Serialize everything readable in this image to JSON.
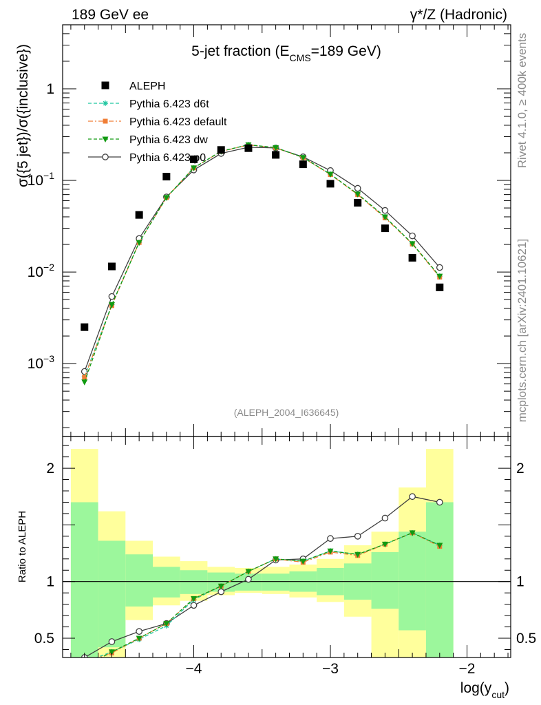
{
  "header": {
    "left": "189 GeV ee",
    "right": "γ*/Z (Hadronic)"
  },
  "side_labels": {
    "rivet": "Rivet 4.1.0, ≥ 400k events",
    "mcplots": "mcplots.cern.ch [arXiv:2401.10621]"
  },
  "chart_data": {
    "type": "scatter",
    "title_main": "5-jet fraction (E",
    "title_sub": "CMS",
    "title_tail": "=189 GeV)",
    "ylabel": "σ({5 jet})/σ({inclusive})",
    "xlabel_main": "log(y",
    "xlabel_sub": "cut",
    "xlabel_tail": ")",
    "ratio_ylabel": "Ratio to ALEPH",
    "analysis_id": "(ALEPH_2004_I636645)",
    "xlim": [
      -4.96,
      -1.68
    ],
    "ylim": [
      0.00016,
      5.0
    ],
    "ratio_ylim": [
      0.33,
      2.28
    ],
    "x_ticks": [
      {
        "value": -4,
        "label": "−4"
      },
      {
        "value": -3,
        "label": "−3"
      },
      {
        "value": -2,
        "label": "−2"
      }
    ],
    "y_ticks": [
      {
        "value": 1,
        "base": "1",
        "exp": ""
      },
      {
        "value": 0.1,
        "base": "10",
        "exp": "−1"
      },
      {
        "value": 0.01,
        "base": "10",
        "exp": "−2"
      },
      {
        "value": 0.001,
        "base": "10",
        "exp": "−3"
      }
    ],
    "ratio_ticks": [
      {
        "value": 2,
        "label": "2"
      },
      {
        "value": 1,
        "label": "1"
      },
      {
        "value": 0.5,
        "label": "0.5"
      }
    ],
    "legend": [
      {
        "name": "ALEPH",
        "color": "#000000",
        "marker": "square",
        "dash": ""
      },
      {
        "name": "Pythia 6.423 d6t",
        "color": "#1fc6a0",
        "marker": "star",
        "dash": "5,3"
      },
      {
        "name": "Pythia 6.423 default",
        "color": "#f07e36",
        "marker": "square-small",
        "dash": "7,3,2,3"
      },
      {
        "name": "Pythia 6.423 dw",
        "color": "#119a11",
        "marker": "triangle-down",
        "dash": "5,3"
      },
      {
        "name": "Pythia 6.423 p0",
        "color": "#404040",
        "marker": "circle-open",
        "dash": ""
      }
    ],
    "x": [
      -4.8,
      -4.6,
      -4.4,
      -4.2,
      -4.0,
      -3.8,
      -3.6,
      -3.4,
      -3.2,
      -3.0,
      -2.8,
      -2.6,
      -2.4,
      -2.2
    ],
    "data": {
      "name": "ALEPH",
      "values": [
        0.0025,
        0.0115,
        0.042,
        0.11,
        0.17,
        0.215,
        0.225,
        0.19,
        0.15,
        0.092,
        0.057,
        0.03,
        0.0143,
        0.0068
      ]
    },
    "series": [
      {
        "name": "Pythia 6.423 d6t",
        "color": "#1fc6a0",
        "values": [
          0.00072,
          0.0044,
          0.021,
          0.065,
          0.137,
          0.208,
          0.245,
          0.228,
          0.178,
          0.117,
          0.071,
          0.04,
          0.0204,
          0.009
        ]
      },
      {
        "name": "Pythia 6.423 default",
        "color": "#f07e36",
        "values": [
          0.00071,
          0.0043,
          0.021,
          0.065,
          0.137,
          0.207,
          0.244,
          0.227,
          0.177,
          0.116,
          0.07,
          0.039,
          0.0202,
          0.0088
        ]
      },
      {
        "name": "Pythia 6.423 dw",
        "color": "#119a11",
        "values": [
          0.00063,
          0.0044,
          0.021,
          0.065,
          0.137,
          0.208,
          0.245,
          0.228,
          0.178,
          0.117,
          0.071,
          0.04,
          0.0204,
          0.009
        ]
      },
      {
        "name": "Pythia 6.423 p0",
        "color": "#404040",
        "values": [
          0.00082,
          0.0054,
          0.0232,
          0.066,
          0.13,
          0.197,
          0.23,
          0.226,
          0.181,
          0.128,
          0.082,
          0.047,
          0.0248,
          0.0112
        ]
      }
    ],
    "ratios": [
      {
        "name": "Pythia 6.423 d6t",
        "values": [
          0.29,
          0.38,
          0.49,
          0.61,
          0.84,
          0.96,
          1.09,
          1.2,
          1.18,
          1.27,
          1.24,
          1.33,
          1.43,
          1.32
        ]
      },
      {
        "name": "Pythia 6.423 default",
        "values": [
          0.28,
          0.37,
          0.5,
          0.63,
          0.85,
          0.96,
          1.09,
          1.2,
          1.17,
          1.26,
          1.23,
          1.33,
          1.43,
          1.31
        ]
      },
      {
        "name": "Pythia 6.423 dw",
        "values": [
          0.25,
          0.38,
          0.5,
          0.63,
          0.85,
          0.96,
          1.09,
          1.2,
          1.18,
          1.27,
          1.24,
          1.33,
          1.43,
          1.32
        ]
      },
      {
        "name": "Pythia 6.423 p0",
        "values": [
          0.33,
          0.47,
          0.56,
          0.63,
          0.79,
          0.91,
          1.02,
          1.19,
          1.2,
          1.38,
          1.4,
          1.56,
          1.75,
          1.7
        ]
      }
    ],
    "bands": [
      {
        "x_low": -4.9,
        "x_high": -4.7,
        "stat_low": 0.33,
        "stat_high": 1.7,
        "tot_low": 0.33,
        "tot_high": 2.17
      },
      {
        "x_low": -4.7,
        "x_high": -4.5,
        "stat_low": 0.42,
        "stat_high": 1.36,
        "tot_low": 0.33,
        "tot_high": 1.62
      },
      {
        "x_low": -4.5,
        "x_high": -4.3,
        "stat_low": 0.78,
        "stat_high": 1.24,
        "tot_low": 0.66,
        "tot_high": 1.36
      },
      {
        "x_low": -4.3,
        "x_high": -4.1,
        "stat_low": 0.86,
        "stat_high": 1.13,
        "tot_low": 0.79,
        "tot_high": 1.22
      },
      {
        "x_low": -4.1,
        "x_high": -3.9,
        "stat_low": 0.89,
        "stat_high": 1.1,
        "tot_low": 0.83,
        "tot_high": 1.18
      },
      {
        "x_low": -3.9,
        "x_high": -3.7,
        "stat_low": 0.91,
        "stat_high": 1.08,
        "tot_low": 0.88,
        "tot_high": 1.13
      },
      {
        "x_low": -3.7,
        "x_high": -3.5,
        "stat_low": 0.92,
        "stat_high": 1.07,
        "tot_low": 0.9,
        "tot_high": 1.12
      },
      {
        "x_low": -3.5,
        "x_high": -3.3,
        "stat_low": 0.92,
        "stat_high": 1.07,
        "tot_low": 0.89,
        "tot_high": 1.13
      },
      {
        "x_low": -3.3,
        "x_high": -3.1,
        "stat_low": 0.91,
        "stat_high": 1.09,
        "tot_low": 0.86,
        "tot_high": 1.15
      },
      {
        "x_low": -3.1,
        "x_high": -2.9,
        "stat_low": 0.88,
        "stat_high": 1.12,
        "tot_low": 0.82,
        "tot_high": 1.2
      },
      {
        "x_low": -2.9,
        "x_high": -2.7,
        "stat_low": 0.84,
        "stat_high": 1.16,
        "tot_low": 0.69,
        "tot_high": 1.32
      },
      {
        "x_low": -2.7,
        "x_high": -2.5,
        "stat_low": 0.76,
        "stat_high": 1.26,
        "tot_low": 0.33,
        "tot_high": 1.44
      },
      {
        "x_low": -2.5,
        "x_high": -2.3,
        "stat_low": 0.57,
        "stat_high": 1.44,
        "tot_low": 0.33,
        "tot_high": 1.83
      },
      {
        "x_low": -2.3,
        "x_high": -2.1,
        "stat_low": 0.33,
        "stat_high": 1.7,
        "tot_low": 0.33,
        "tot_high": 2.17
      }
    ],
    "colors": {
      "stat_band": "#9cf79c",
      "total_band": "#ffff9c",
      "frame": "#000000"
    }
  }
}
